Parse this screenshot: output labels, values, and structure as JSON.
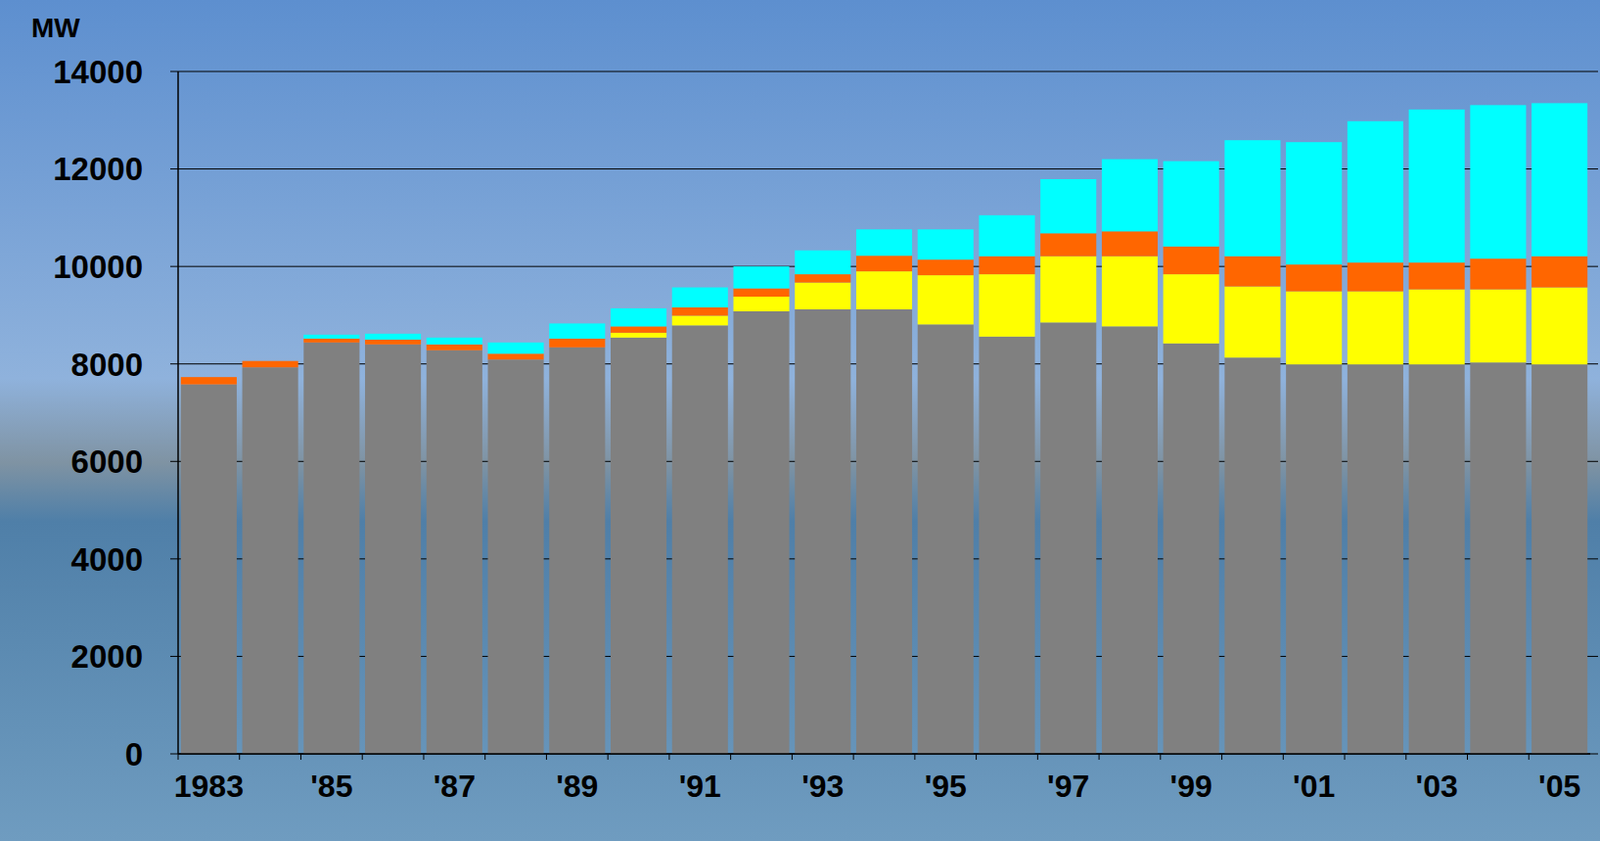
{
  "chart_data": {
    "type": "bar",
    "stacked": true,
    "grid": true,
    "ylabel": "MW",
    "categories": [
      "1983",
      null,
      "'85",
      null,
      "'87",
      null,
      "'89",
      null,
      "'91",
      null,
      "'93",
      null,
      "'95",
      null,
      "'97",
      null,
      "'99",
      null,
      "'01",
      null,
      "'03",
      null,
      "'05"
    ],
    "ylim": [
      0,
      14000
    ],
    "yticks": [
      0,
      2000,
      4000,
      6000,
      8000,
      10000,
      12000,
      14000
    ],
    "series": [
      {
        "color": "#808080",
        "values": [
          7580,
          7930,
          8440,
          8400,
          8280,
          8090,
          8340,
          8540,
          8790,
          9080,
          9120,
          9120,
          8810,
          8560,
          8850,
          8770,
          8420,
          8130,
          7990,
          7990,
          7990,
          8030,
          7990
        ]
      },
      {
        "color": "#ffff00",
        "values": [
          0,
          0,
          0,
          0,
          0,
          0,
          0,
          100,
          200,
          300,
          550,
          780,
          1010,
          1280,
          1360,
          1440,
          1420,
          1460,
          1500,
          1500,
          1540,
          1500,
          1580
        ]
      },
      {
        "color": "#ff6600",
        "values": [
          150,
          130,
          80,
          100,
          120,
          120,
          180,
          130,
          170,
          170,
          170,
          320,
          320,
          370,
          470,
          510,
          570,
          620,
          550,
          590,
          550,
          630,
          640
        ]
      },
      {
        "color": "#00ffff",
        "values": [
          0,
          0,
          80,
          120,
          140,
          230,
          310,
          370,
          410,
          450,
          490,
          540,
          620,
          840,
          1110,
          1480,
          1750,
          2380,
          2510,
          2900,
          3140,
          3150,
          3140
        ]
      }
    ]
  }
}
